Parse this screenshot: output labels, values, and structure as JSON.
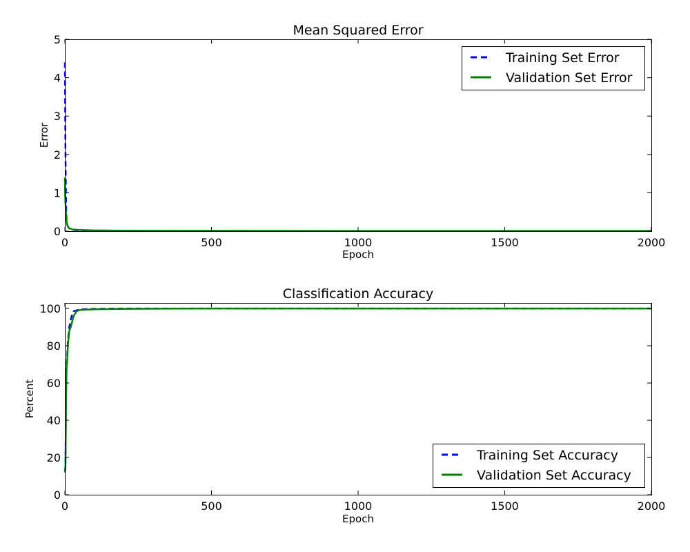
{
  "chart_data": [
    {
      "type": "line",
      "title": "Mean Squared Error",
      "xlabel": "Epoch",
      "ylabel": "Error",
      "xlim": [
        0,
        2000
      ],
      "ylim": [
        0,
        5
      ],
      "xticks": [
        0,
        500,
        1000,
        1500,
        2000
      ],
      "yticks": [
        0,
        1,
        2,
        3,
        4,
        5
      ],
      "grid": false,
      "legend_position": "top-right",
      "series": [
        {
          "name": "Training Set Error",
          "color": "#0000ff",
          "style": "dashed",
          "x": [
            0,
            1,
            2,
            3,
            4,
            5,
            6,
            8,
            10,
            15,
            20,
            30,
            50,
            100,
            200,
            500,
            1000,
            1500,
            2000
          ],
          "y": [
            4.4,
            3.3,
            2.2,
            1.4,
            0.8,
            0.5,
            0.3,
            0.18,
            0.12,
            0.07,
            0.05,
            0.03,
            0.02,
            0.01,
            0.008,
            0.005,
            0.004,
            0.003,
            0.003
          ]
        },
        {
          "name": "Validation Set Error",
          "color": "#008000",
          "style": "solid",
          "x": [
            0,
            1,
            2,
            3,
            4,
            5,
            6,
            8,
            10,
            15,
            20,
            30,
            50,
            100,
            200,
            500,
            1000,
            1500,
            2000
          ],
          "y": [
            1.4,
            0.95,
            0.75,
            0.6,
            0.45,
            0.35,
            0.25,
            0.17,
            0.12,
            0.08,
            0.06,
            0.04,
            0.03,
            0.02,
            0.015,
            0.01,
            0.008,
            0.007,
            0.007
          ]
        }
      ]
    },
    {
      "type": "line",
      "title": "Classification Accuracy",
      "xlabel": "Epoch",
      "ylabel": "Percent",
      "xlim": [
        0,
        2000
      ],
      "ylim": [
        0,
        103
      ],
      "xticks": [
        0,
        500,
        1000,
        1500,
        2000
      ],
      "yticks": [
        0,
        20,
        40,
        60,
        80,
        100
      ],
      "grid": false,
      "legend_position": "bottom-right",
      "series": [
        {
          "name": "Training Set Accuracy",
          "color": "#0000ff",
          "style": "dashed",
          "x": [
            0,
            2,
            3,
            4,
            5,
            6,
            8,
            10,
            12,
            15,
            20,
            25,
            30,
            40,
            50,
            100,
            200,
            500,
            1000,
            1500,
            2000
          ],
          "y": [
            12,
            15,
            35,
            55,
            62,
            70,
            75,
            82,
            85,
            90,
            94,
            97,
            98.5,
            99,
            99.5,
            99.8,
            100,
            100,
            100,
            100,
            100
          ]
        },
        {
          "name": "Validation Set Accuracy",
          "color": "#008000",
          "style": "solid",
          "x": [
            0,
            2,
            3,
            4,
            5,
            6,
            8,
            10,
            12,
            15,
            20,
            25,
            30,
            40,
            50,
            100,
            200,
            500,
            1000,
            1500,
            2000
          ],
          "y": [
            12,
            14,
            30,
            50,
            58,
            68,
            72,
            80,
            83,
            88,
            90,
            93,
            96,
            98.5,
            99.2,
            99.6,
            99.8,
            100,
            100,
            100,
            100
          ]
        }
      ]
    }
  ]
}
